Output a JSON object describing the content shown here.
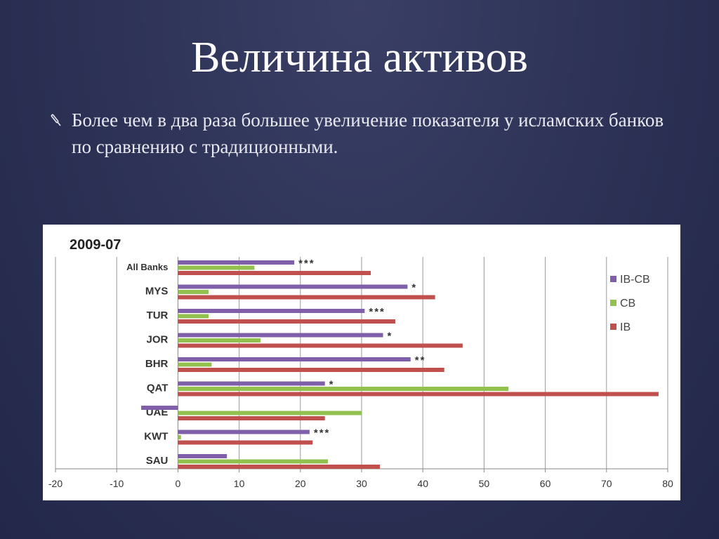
{
  "slide": {
    "title": "Величина активов",
    "bullet_text": "Более чем в два раза большее увеличение показателя у исламских банков по сравнению с традиционными."
  },
  "icons": {
    "bullet": "bullet-pin-icon"
  },
  "colors": {
    "ib_cb": "#7f5faa",
    "cb": "#92c150",
    "ib": "#c0504d"
  },
  "chart_data": {
    "type": "bar",
    "orientation": "horizontal",
    "title": "2009-07",
    "categories": [
      "All Banks",
      "MYS",
      "TUR",
      "JOR",
      "BHR",
      "QAT",
      "UAE",
      "KWT",
      "SAU"
    ],
    "series": [
      {
        "name": "IB-CB",
        "values": [
          19,
          37.5,
          30.5,
          33.5,
          38,
          24,
          -6,
          21.5,
          8
        ]
      },
      {
        "name": "CB",
        "values": [
          12.5,
          5,
          5,
          13.5,
          5.5,
          54,
          30,
          0.5,
          24.5
        ]
      },
      {
        "name": "IB",
        "values": [
          31.5,
          42,
          35.5,
          46.5,
          43.5,
          78.5,
          24,
          22,
          33
        ]
      }
    ],
    "significance": [
      "***",
      "*",
      "***",
      "*",
      "**",
      "*",
      "",
      "***",
      ""
    ],
    "xlim": [
      -20,
      80
    ],
    "xticks": [
      -20,
      -10,
      0,
      10,
      20,
      30,
      40,
      50,
      60,
      70,
      80
    ],
    "grid": true,
    "legend_position": "right",
    "xlabel": "",
    "ylabel": ""
  }
}
